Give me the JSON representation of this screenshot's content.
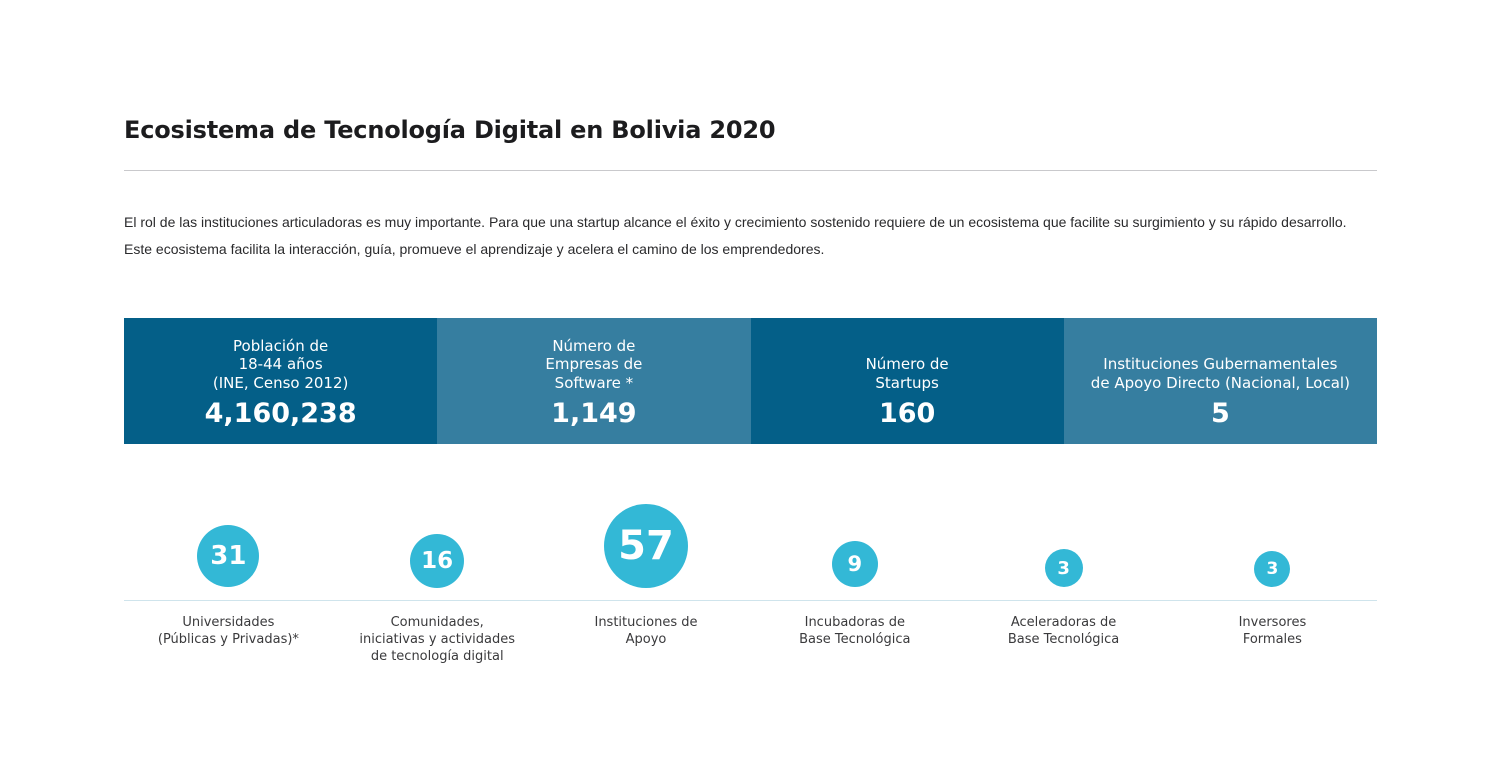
{
  "title": "Ecosistema de Tecnología Digital en Bolivia 2020",
  "intro": "El rol de las instituciones articuladoras es muy importante. Para que una startup alcance el éxito y crecimiento sostenido requiere de un ecosistema que facilite su surgimiento y su rápido desarrollo. Este ecosistema facilita la interacción, guía, promueve el aprendizaje y acelera el camino de los emprendedores.",
  "stats": [
    {
      "label": "Población de\n18-44 años\n(INE, Censo 2012)",
      "value": "4,160,238",
      "color": "#045f88"
    },
    {
      "label": "Número de\nEmpresas de\nSoftware *",
      "value": "1,149",
      "color": "#367ea0"
    },
    {
      "label": "Número de\nStartups",
      "value": "160",
      "color": "#045f88"
    },
    {
      "label": "Instituciones Gubernamentales\nde Apoyo Directo (Nacional, Local)",
      "value": "5",
      "color": "#367ea0"
    }
  ],
  "circles": [
    {
      "value": "31",
      "label": "Universidades\n(Públicas y Privadas)*"
    },
    {
      "value": "16",
      "label": "Comunidades,\niniciativas y actividades\nde tecnología digital"
    },
    {
      "value": "57",
      "label": "Instituciones de\nApoyo"
    },
    {
      "value": "9",
      "label": "Incubadoras de\nBase Tecnológica"
    },
    {
      "value": "3",
      "label": "Aceleradoras de\nBase Tecnológica"
    },
    {
      "value": "3",
      "label": "Inversores\nFormales"
    }
  ],
  "colors": {
    "stat_dark": "#045f88",
    "stat_light": "#367ea0",
    "bubble": "#33b8d6"
  }
}
